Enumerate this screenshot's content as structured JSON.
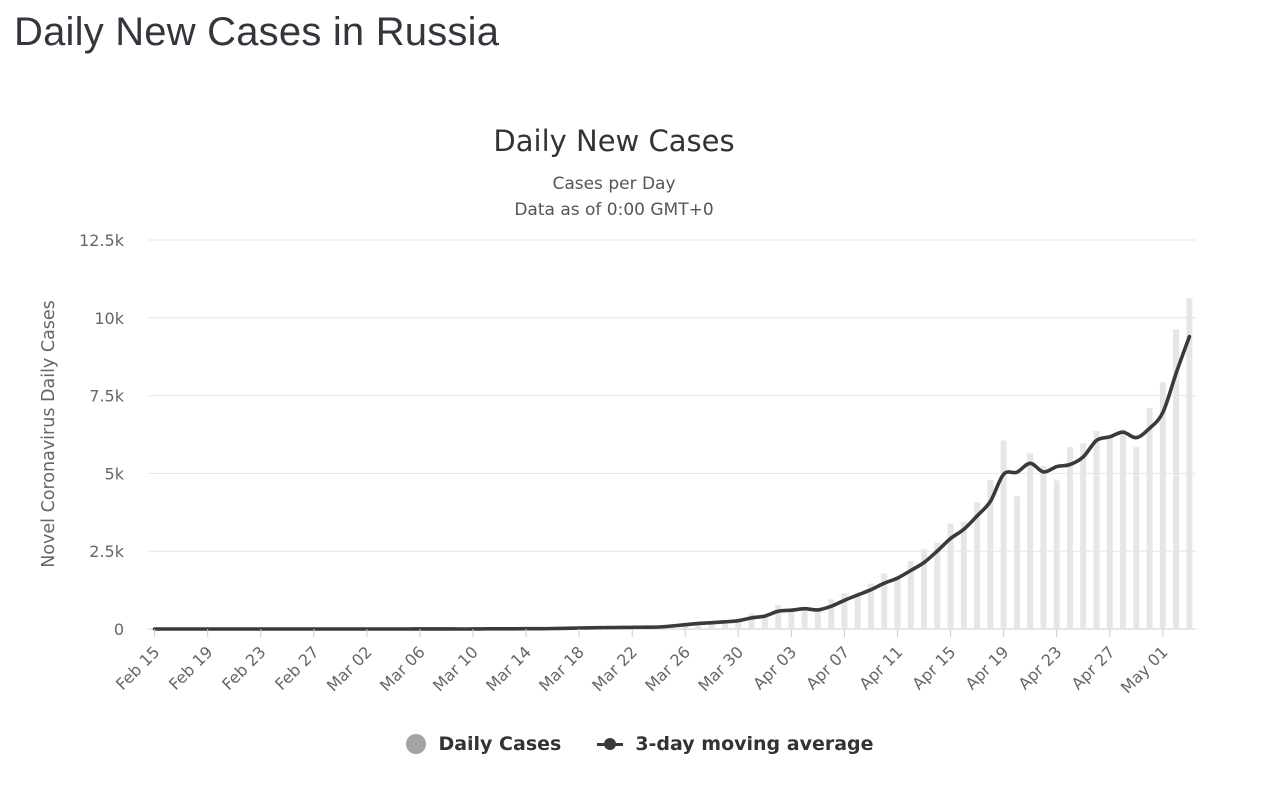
{
  "page": {
    "heading": "Daily New Cases in Russia"
  },
  "colors": {
    "bars": "#e6e6e6",
    "line": "#3a3a3a",
    "grid": "#e6e6e6",
    "legend_dot": "#a4a4a4"
  },
  "chart_data": {
    "type": "bar",
    "title": "Daily New Cases",
    "subtitle_lines": [
      "Cases per Day",
      "Data as of 0:00 GMT+0"
    ],
    "ylabel": "Novel Coronavirus Daily Cases",
    "xlabel": "",
    "ylim": [
      0,
      12500
    ],
    "yticks": [
      0,
      2500,
      5000,
      7500,
      10000,
      12500
    ],
    "ytick_labels": [
      "0",
      "2.5k",
      "5k",
      "7.5k",
      "10k",
      "12.5k"
    ],
    "grid": true,
    "legend_position": "bottom-center",
    "categories": [
      "Feb 15",
      "Feb 16",
      "Feb 17",
      "Feb 18",
      "Feb 19",
      "Feb 20",
      "Feb 21",
      "Feb 22",
      "Feb 23",
      "Feb 24",
      "Feb 25",
      "Feb 26",
      "Feb 27",
      "Feb 28",
      "Feb 29",
      "Mar 01",
      "Mar 02",
      "Mar 03",
      "Mar 04",
      "Mar 05",
      "Mar 06",
      "Mar 07",
      "Mar 08",
      "Mar 09",
      "Mar 10",
      "Mar 11",
      "Mar 12",
      "Mar 13",
      "Mar 14",
      "Mar 15",
      "Mar 16",
      "Mar 17",
      "Mar 18",
      "Mar 19",
      "Mar 20",
      "Mar 21",
      "Mar 22",
      "Mar 23",
      "Mar 24",
      "Mar 25",
      "Mar 26",
      "Mar 27",
      "Mar 28",
      "Mar 29",
      "Mar 30",
      "Mar 31",
      "Apr 01",
      "Apr 02",
      "Apr 03",
      "Apr 04",
      "Apr 05",
      "Apr 06",
      "Apr 07",
      "Apr 08",
      "Apr 09",
      "Apr 10",
      "Apr 11",
      "Apr 12",
      "Apr 13",
      "Apr 14",
      "Apr 15",
      "Apr 16",
      "Apr 17",
      "Apr 18",
      "Apr 19",
      "Apr 20",
      "Apr 21",
      "Apr 22",
      "Apr 23",
      "Apr 24",
      "Apr 25",
      "Apr 26",
      "Apr 27",
      "Apr 28",
      "Apr 29",
      "Apr 30",
      "May 01",
      "May 02",
      "May 03"
    ],
    "x_tick_labels": [
      "Feb 15",
      "Feb 19",
      "Feb 23",
      "Feb 27",
      "Mar 02",
      "Mar 06",
      "Mar 10",
      "Mar 14",
      "Mar 18",
      "Mar 22",
      "Mar 26",
      "Mar 30",
      "Apr 03",
      "Apr 07",
      "Apr 11",
      "Apr 15",
      "Apr 19",
      "Apr 23",
      "Apr 27",
      "May 01"
    ],
    "series": [
      {
        "name": "Daily Cases",
        "kind": "bar",
        "values": [
          0,
          0,
          0,
          0,
          0,
          0,
          0,
          0,
          0,
          0,
          0,
          0,
          0,
          0,
          0,
          1,
          0,
          0,
          0,
          1,
          6,
          0,
          3,
          0,
          3,
          8,
          6,
          11,
          14,
          4,
          30,
          33,
          33,
          52,
          53,
          53,
          61,
          57,
          71,
          163,
          182,
          196,
          228,
          270,
          302,
          500,
          440,
          771,
          601,
          582,
          658,
          954,
          1154,
          1175,
          1459,
          1786,
          1667,
          2186,
          2558,
          2774,
          3388,
          3448,
          4070,
          4785,
          6060,
          4268,
          5642,
          5236,
          4774,
          5849,
          5966,
          6361,
          6198,
          6411,
          5841,
          7099,
          7933,
          9623,
          10633
        ]
      },
      {
        "name": "3-day moving average",
        "kind": "line",
        "values": [
          0,
          0,
          0,
          0,
          0,
          0,
          0,
          0,
          0,
          0,
          0,
          0,
          0,
          0,
          0,
          0,
          0,
          0,
          0,
          1,
          2,
          2,
          3,
          1,
          2,
          5,
          6,
          8,
          10,
          10,
          16,
          22,
          32,
          39,
          46,
          53,
          56,
          57,
          63,
          97,
          139,
          180,
          202,
          231,
          267,
          357,
          414,
          570,
          604,
          651,
          614,
          731,
          922,
          1094,
          1263,
          1473,
          1637,
          1880,
          2137,
          2506,
          2907,
          3203,
          3635,
          4101,
          4972,
          5038,
          5323,
          5049,
          5217,
          5286,
          5530,
          6059,
          6175,
          6323,
          6150,
          6450,
          6958,
          8218,
          9396
        ]
      }
    ]
  },
  "legend": {
    "items": [
      {
        "label": "Daily Cases"
      },
      {
        "label": "3-day moving average"
      }
    ]
  }
}
